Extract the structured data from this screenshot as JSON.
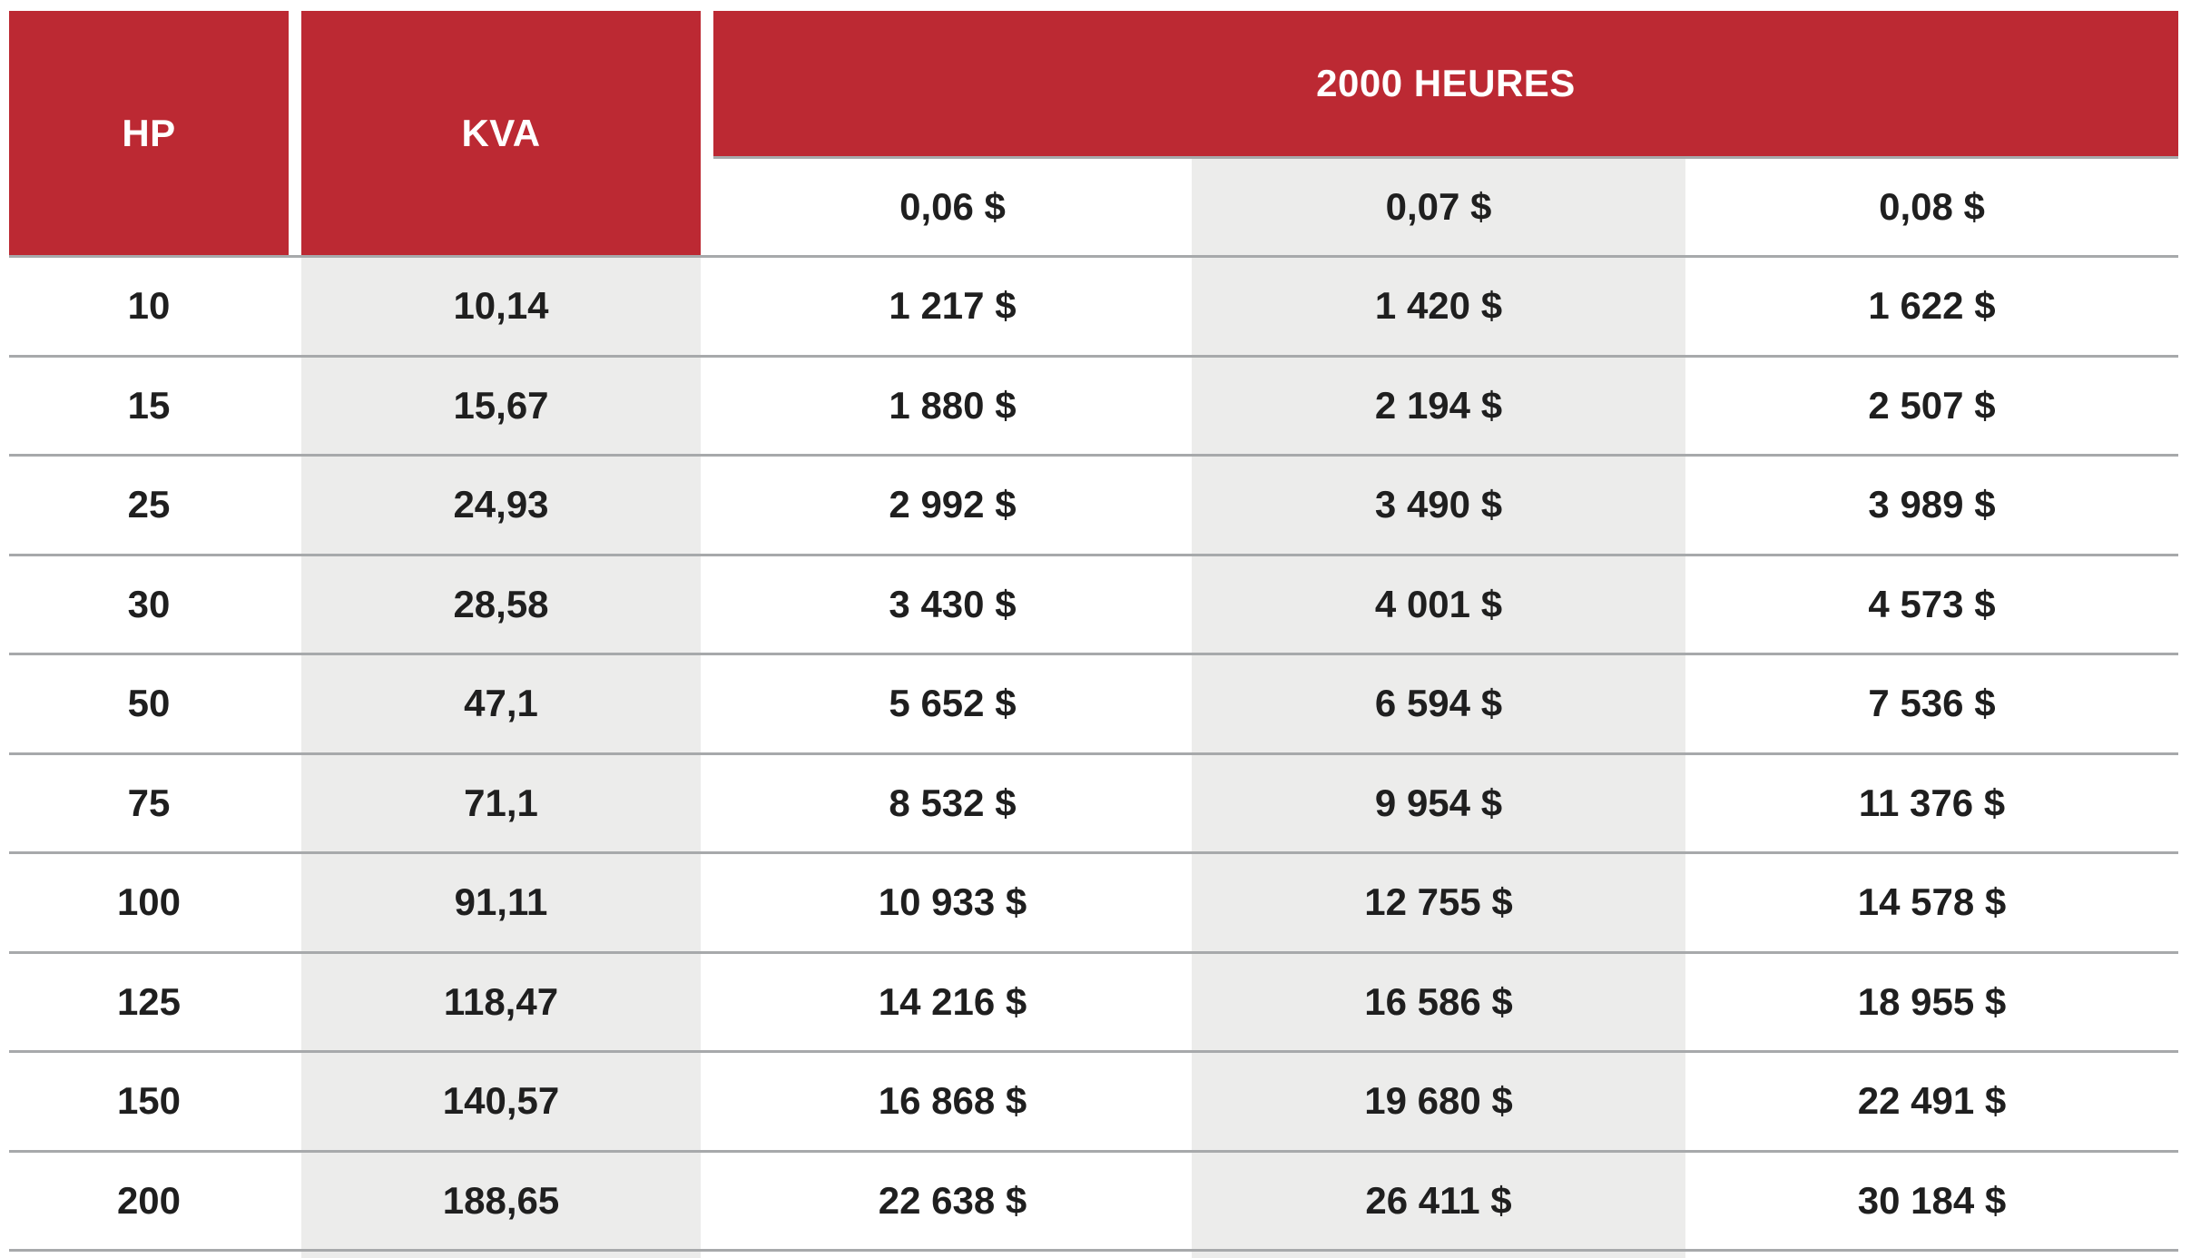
{
  "colors": {
    "header_red": "#BC2933",
    "stripe_gray": "#ECECEB",
    "separator_gray": "#A7A9AB",
    "text_dark": "#1F1F1F",
    "header_text": "#FFFFFF"
  },
  "chart_data": {
    "type": "table",
    "title": "2000 HEURES",
    "group_header": "2000 HEURES",
    "columns": [
      "HP",
      "KVA",
      "0,06 $",
      "0,07 $",
      "0,08 $"
    ],
    "rows": [
      [
        "10",
        "10,14",
        "1 217 $",
        "1 420 $",
        "1 622 $"
      ],
      [
        "15",
        "15,67",
        "1 880 $",
        "2 194 $",
        "2 507 $"
      ],
      [
        "25",
        "24,93",
        "2 992 $",
        "3 490 $",
        "3 989 $"
      ],
      [
        "30",
        "28,58",
        "3 430 $",
        "4 001 $",
        "4 573 $"
      ],
      [
        "50",
        "47,1",
        "5 652 $",
        "6 594 $",
        "7 536 $"
      ],
      [
        "75",
        "71,1",
        "8 532 $",
        "9 954 $",
        "11 376 $"
      ],
      [
        "100",
        "91,11",
        "10 933 $",
        "12 755 $",
        "14 578 $"
      ],
      [
        "125",
        "118,47",
        "14 216 $",
        "16 586 $",
        "18 955 $"
      ],
      [
        "150",
        "140,57",
        "16 868 $",
        "19 680 $",
        "22 491 $"
      ],
      [
        "200",
        "188,65",
        "22 638 $",
        "26 411 $",
        "30 184 $"
      ]
    ]
  }
}
